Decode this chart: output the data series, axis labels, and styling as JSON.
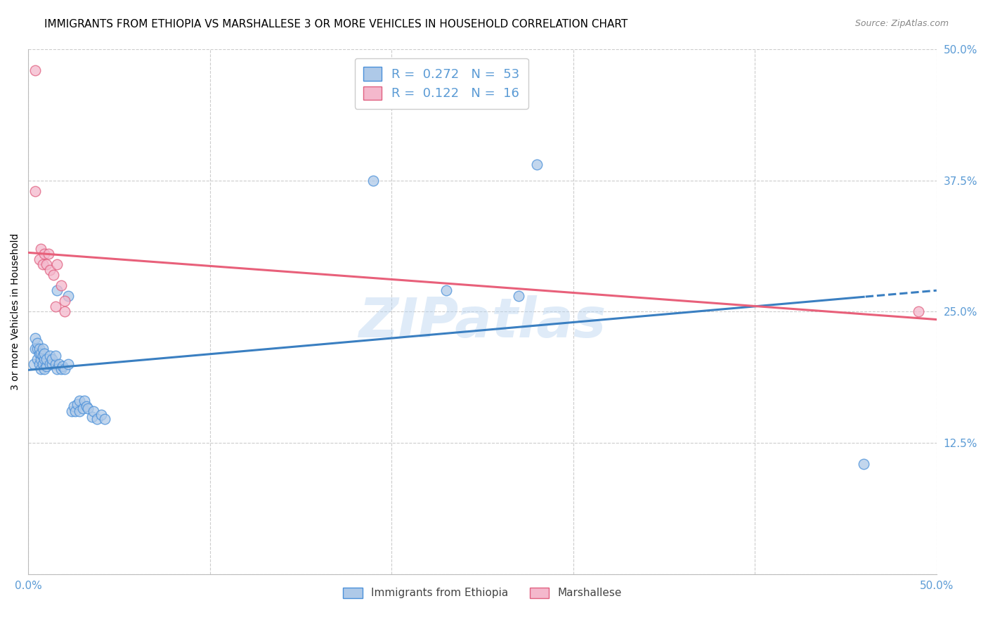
{
  "title": "IMMIGRANTS FROM ETHIOPIA VS MARSHALLESE 3 OR MORE VEHICLES IN HOUSEHOLD CORRELATION CHART",
  "source": "Source: ZipAtlas.com",
  "ylabel": "3 or more Vehicles in Household",
  "x_min": 0.0,
  "x_max": 0.5,
  "y_min": 0.0,
  "y_max": 0.5,
  "y_ticks_right": [
    0.125,
    0.25,
    0.375,
    0.5
  ],
  "y_tick_labels_right": [
    "12.5%",
    "25.0%",
    "37.5%",
    "50.0%"
  ],
  "blue_color": "#aec9e8",
  "pink_color": "#f4b8cc",
  "blue_edge_color": "#4a90d9",
  "pink_edge_color": "#e06080",
  "blue_line_color": "#3a7fc1",
  "pink_line_color": "#e8607a",
  "axis_color": "#5b9bd5",
  "grid_color": "#cccccc",
  "background_color": "#ffffff",
  "watermark": "ZIPatlas",
  "title_fontsize": 11,
  "label_fontsize": 10,
  "tick_fontsize": 11,
  "blue_scatter": [
    [
      0.003,
      0.2
    ],
    [
      0.004,
      0.215
    ],
    [
      0.004,
      0.225
    ],
    [
      0.005,
      0.205
    ],
    [
      0.005,
      0.215
    ],
    [
      0.005,
      0.22
    ],
    [
      0.006,
      0.2
    ],
    [
      0.006,
      0.21
    ],
    [
      0.006,
      0.215
    ],
    [
      0.007,
      0.195
    ],
    [
      0.007,
      0.205
    ],
    [
      0.007,
      0.21
    ],
    [
      0.008,
      0.2
    ],
    [
      0.008,
      0.208
    ],
    [
      0.008,
      0.215
    ],
    [
      0.009,
      0.195
    ],
    [
      0.009,
      0.205
    ],
    [
      0.009,
      0.21
    ],
    [
      0.01,
      0.198
    ],
    [
      0.01,
      0.205
    ],
    [
      0.012,
      0.2
    ],
    [
      0.012,
      0.208
    ],
    [
      0.013,
      0.2
    ],
    [
      0.013,
      0.205
    ],
    [
      0.015,
      0.2
    ],
    [
      0.015,
      0.208
    ],
    [
      0.016,
      0.195
    ],
    [
      0.017,
      0.2
    ],
    [
      0.018,
      0.195
    ],
    [
      0.019,
      0.198
    ],
    [
      0.02,
      0.195
    ],
    [
      0.022,
      0.2
    ],
    [
      0.024,
      0.155
    ],
    [
      0.025,
      0.16
    ],
    [
      0.026,
      0.155
    ],
    [
      0.027,
      0.162
    ],
    [
      0.028,
      0.155
    ],
    [
      0.028,
      0.165
    ],
    [
      0.03,
      0.158
    ],
    [
      0.031,
      0.165
    ],
    [
      0.032,
      0.16
    ],
    [
      0.033,
      0.158
    ],
    [
      0.035,
      0.15
    ],
    [
      0.036,
      0.155
    ],
    [
      0.038,
      0.148
    ],
    [
      0.04,
      0.152
    ],
    [
      0.042,
      0.148
    ],
    [
      0.016,
      0.27
    ],
    [
      0.022,
      0.265
    ],
    [
      0.23,
      0.27
    ],
    [
      0.27,
      0.265
    ],
    [
      0.19,
      0.375
    ],
    [
      0.28,
      0.39
    ],
    [
      0.46,
      0.105
    ]
  ],
  "pink_scatter": [
    [
      0.004,
      0.48
    ],
    [
      0.004,
      0.365
    ],
    [
      0.006,
      0.3
    ],
    [
      0.007,
      0.31
    ],
    [
      0.008,
      0.295
    ],
    [
      0.009,
      0.305
    ],
    [
      0.01,
      0.295
    ],
    [
      0.011,
      0.305
    ],
    [
      0.012,
      0.29
    ],
    [
      0.014,
      0.285
    ],
    [
      0.015,
      0.255
    ],
    [
      0.016,
      0.295
    ],
    [
      0.018,
      0.275
    ],
    [
      0.02,
      0.26
    ],
    [
      0.02,
      0.25
    ],
    [
      0.49,
      0.25
    ]
  ]
}
